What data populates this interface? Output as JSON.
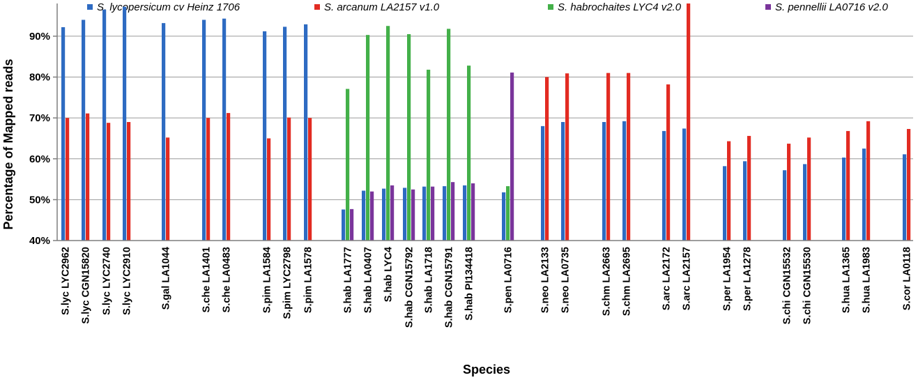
{
  "chart_data": {
    "type": "bar",
    "title": "",
    "xlabel": "Species",
    "ylabel": "Percentage of Mapped reads",
    "ylim": [
      40,
      98
    ],
    "yticks": [
      "40%",
      "50%",
      "60%",
      "70%",
      "80%",
      "90%"
    ],
    "grid": true,
    "legend_position": "top",
    "colors": [
      "#2e6bc2",
      "#e22b22",
      "#43b049",
      "#7a359b"
    ],
    "categories": [
      "S.lyc LYC2962",
      "S.lyc CGN15820",
      "S.lyc LYC2740",
      "S.lyc LYC2910",
      "S.gal LA1044",
      "S.che LA1401",
      "S.che LA0483",
      "S.pim LA1584",
      "S.pim LYC2798",
      "S.pim LA1578",
      "S.hab LA1777",
      "S.hab LA0407",
      "S.hab LYC4",
      "S.hab CGN15792",
      "S.hab LA1718",
      "S.hab CGN15791",
      "S.hab PI134418",
      "S.pen LA0716",
      "S.neo LA2133",
      "S.neo LA0735",
      "S.chm LA2663",
      "S.chm LA2695",
      "S.arc LA2172",
      "S.arc LA2157",
      "S.per LA1954",
      "S.per LA1278",
      "S.chi CGN15532",
      "S.chi CGN15530",
      "S.hua LA1365",
      "S.hua LA1983",
      "S.cor LA0118"
    ],
    "series": [
      {
        "name": "S. lycopersicum cv Heinz 1706",
        "values": [
          92.2,
          94.0,
          96.5,
          97.2,
          93.2,
          94.0,
          94.3,
          91.2,
          92.3,
          92.9,
          47.6,
          52.2,
          52.7,
          52.9,
          53.2,
          53.3,
          53.5,
          51.8,
          68.0,
          69.0,
          69.0,
          69.2,
          66.8,
          67.4,
          58.2,
          59.4,
          57.2,
          58.7,
          60.3,
          62.5,
          61.1
        ]
      },
      {
        "name": "S. arcanum LA2157 v1.0",
        "values": [
          70.0,
          71.1,
          68.8,
          69.0,
          65.2,
          70.0,
          71.2,
          65.0,
          70.1,
          70.0,
          null,
          null,
          null,
          null,
          null,
          null,
          null,
          null,
          80.0,
          80.9,
          81.0,
          81.0,
          78.2,
          98.0,
          64.3,
          65.6,
          63.7,
          65.2,
          66.8,
          69.2,
          67.3
        ]
      },
      {
        "name": "S. habrochaites LYC4 v2.0",
        "values": [
          null,
          null,
          null,
          null,
          null,
          null,
          null,
          null,
          null,
          null,
          77.1,
          90.3,
          92.5,
          90.5,
          81.8,
          91.8,
          82.8,
          53.3,
          null,
          null,
          null,
          null,
          null,
          null,
          null,
          null,
          null,
          null,
          null,
          null,
          null
        ]
      },
      {
        "name": "S. pennellii LA0716 v2.0",
        "values": [
          null,
          null,
          null,
          null,
          null,
          null,
          null,
          null,
          null,
          null,
          47.7,
          52.0,
          53.5,
          52.5,
          53.2,
          54.3,
          54.0,
          81.1,
          null,
          null,
          null,
          null,
          null,
          null,
          null,
          null,
          null,
          null,
          null,
          null,
          null
        ]
      }
    ]
  }
}
